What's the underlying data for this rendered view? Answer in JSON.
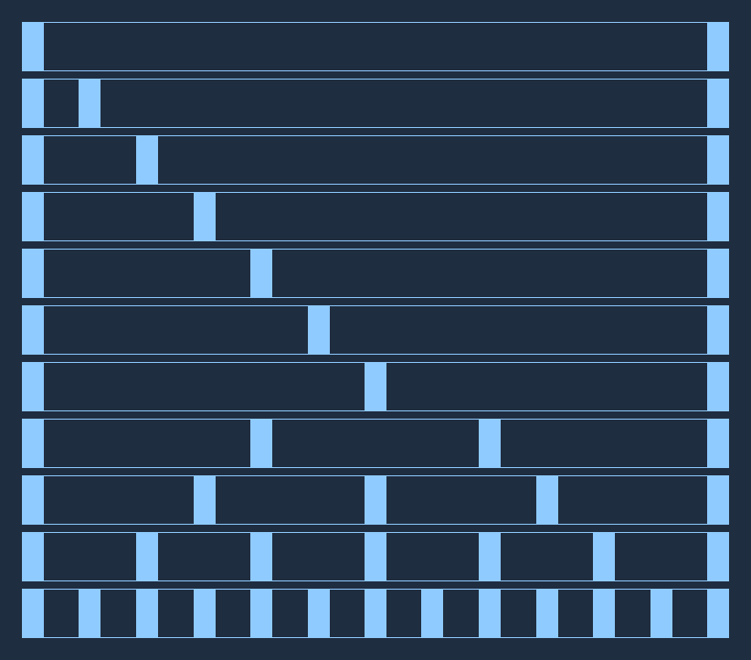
{
  "colors": {
    "background": "#1f2d40",
    "bar": "#8fcbff",
    "outline": "#8fcbff"
  },
  "rows": [
    {
      "bars": [
        0,
        1
      ]
    },
    {
      "bars": [
        0,
        0.08333,
        1
      ]
    },
    {
      "bars": [
        0,
        0.16667,
        1
      ]
    },
    {
      "bars": [
        0,
        0.25,
        1
      ]
    },
    {
      "bars": [
        0,
        0.33333,
        1
      ]
    },
    {
      "bars": [
        0,
        0.41667,
        1
      ]
    },
    {
      "bars": [
        0,
        0.5,
        1
      ]
    },
    {
      "bars": [
        0,
        0.33333,
        0.66667,
        1
      ]
    },
    {
      "bars": [
        0,
        0.25,
        0.5,
        0.75,
        1
      ]
    },
    {
      "bars": [
        0,
        0.16667,
        0.33333,
        0.5,
        0.66667,
        0.83333,
        1
      ]
    },
    {
      "bars": [
        0,
        0.08333,
        0.16667,
        0.25,
        0.33333,
        0.41667,
        0.5,
        0.58333,
        0.66667,
        0.75,
        0.83333,
        0.91667,
        1
      ]
    }
  ]
}
